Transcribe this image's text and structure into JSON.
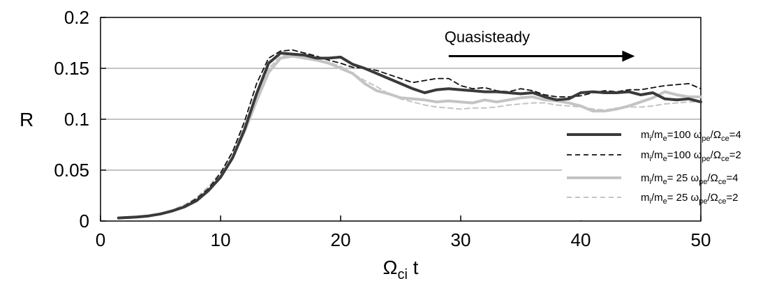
{
  "chart_data": {
    "type": "line",
    "xlabel": "Ω",
    "xlabel_sub": "ci",
    "xlabel_tail": " t",
    "ylabel": "R",
    "xlim": [
      0,
      50
    ],
    "ylim": [
      0,
      0.2
    ],
    "xticks": [
      "0",
      "10",
      "20",
      "30",
      "40",
      "50"
    ],
    "yticks": [
      "0",
      "0.05",
      "0.1",
      "0.15",
      "0.2"
    ],
    "ytick_values": [
      0,
      0.05,
      0.1,
      0.15,
      0.2
    ],
    "xtick_values": [
      0,
      10,
      20,
      30,
      40,
      50
    ],
    "grid": "horizontal",
    "legend_position": "right",
    "annotation": {
      "text": "Quasisteady",
      "arrow_from_x": 29,
      "arrow_to_x": 44.5,
      "arrow_y": 0.162
    },
    "series": [
      {
        "legend": [
          "m",
          "i",
          "/m",
          "e",
          "=100 ω",
          "pe",
          "/Ω",
          "ce",
          "=4"
        ],
        "color": "#3a3a3a",
        "width": 4,
        "dash": "",
        "x": [
          1.5,
          3,
          4,
          5,
          6,
          7,
          8,
          9,
          10,
          11,
          12,
          13,
          14,
          15,
          16,
          17,
          18,
          19,
          20,
          21,
          22,
          23,
          24,
          25,
          26,
          27,
          28,
          29,
          30,
          31,
          32,
          33,
          34,
          35,
          36,
          37,
          38,
          39,
          40,
          41,
          42,
          43,
          44,
          45,
          46,
          47,
          48,
          49,
          50
        ],
        "y": [
          0.003,
          0.004,
          0.005,
          0.007,
          0.01,
          0.014,
          0.02,
          0.03,
          0.043,
          0.062,
          0.09,
          0.125,
          0.155,
          0.165,
          0.164,
          0.163,
          0.16,
          0.16,
          0.161,
          0.154,
          0.15,
          0.145,
          0.14,
          0.135,
          0.13,
          0.126,
          0.129,
          0.13,
          0.129,
          0.128,
          0.127,
          0.127,
          0.126,
          0.125,
          0.126,
          0.122,
          0.119,
          0.12,
          0.126,
          0.127,
          0.126,
          0.126,
          0.127,
          0.124,
          0.126,
          0.12,
          0.119,
          0.12,
          0.117
        ]
      },
      {
        "legend": [
          "m",
          "i",
          "/m",
          "e",
          "=100 ω",
          "pe",
          "/Ω",
          "ce",
          "=2"
        ],
        "color": "#111111",
        "width": 1.8,
        "dash": "7,5",
        "x": [
          1.5,
          3,
          4,
          5,
          6,
          7,
          8,
          9,
          10,
          11,
          12,
          13,
          14,
          15,
          16,
          17,
          18,
          19,
          20,
          21,
          22,
          23,
          24,
          25,
          26,
          27,
          28,
          29,
          30,
          31,
          32,
          33,
          34,
          35,
          36,
          37,
          38,
          39,
          40,
          41,
          42,
          43,
          44,
          45,
          46,
          47,
          48,
          49,
          50
        ],
        "y": [
          0.003,
          0.004,
          0.005,
          0.007,
          0.01,
          0.015,
          0.022,
          0.032,
          0.047,
          0.068,
          0.098,
          0.135,
          0.16,
          0.167,
          0.168,
          0.165,
          0.162,
          0.158,
          0.155,
          0.151,
          0.15,
          0.148,
          0.144,
          0.14,
          0.136,
          0.138,
          0.14,
          0.14,
          0.133,
          0.13,
          0.131,
          0.128,
          0.127,
          0.13,
          0.128,
          0.124,
          0.122,
          0.122,
          0.123,
          0.126,
          0.128,
          0.127,
          0.129,
          0.129,
          0.131,
          0.133,
          0.134,
          0.135,
          0.13
        ]
      },
      {
        "legend": [
          "m",
          "i",
          "/m",
          "e",
          "=  25 ω",
          "pe",
          "/Ω",
          "ce",
          "=4"
        ],
        "color": "#c4c4c4",
        "width": 4,
        "dash": "",
        "x": [
          1.5,
          3,
          4,
          5,
          6,
          7,
          8,
          9,
          10,
          11,
          12,
          13,
          14,
          15,
          16,
          17,
          18,
          19,
          20,
          21,
          22,
          23,
          24,
          25,
          26,
          27,
          28,
          29,
          30,
          31,
          32,
          33,
          34,
          35,
          36,
          37,
          38,
          39,
          40,
          41,
          42,
          43,
          44,
          45,
          46,
          47,
          48,
          49,
          50
        ],
        "y": [
          0.003,
          0.004,
          0.005,
          0.007,
          0.01,
          0.014,
          0.02,
          0.03,
          0.044,
          0.063,
          0.088,
          0.118,
          0.146,
          0.16,
          0.162,
          0.16,
          0.158,
          0.155,
          0.15,
          0.145,
          0.135,
          0.128,
          0.125,
          0.121,
          0.12,
          0.119,
          0.117,
          0.118,
          0.117,
          0.116,
          0.119,
          0.117,
          0.119,
          0.121,
          0.122,
          0.119,
          0.118,
          0.116,
          0.113,
          0.108,
          0.108,
          0.11,
          0.113,
          0.117,
          0.121,
          0.127,
          0.124,
          0.122,
          0.122
        ]
      },
      {
        "legend": [
          "m",
          "i",
          "/m",
          "e",
          "=  25 ω",
          "pe",
          "/Ω",
          "ce",
          "=2"
        ],
        "color": "#c4c4c4",
        "width": 2,
        "dash": "7,5",
        "x": [
          1.5,
          3,
          4,
          5,
          6,
          7,
          8,
          9,
          10,
          11,
          12,
          13,
          14,
          15,
          16,
          17,
          18,
          19,
          20,
          21,
          22,
          23,
          24,
          25,
          26,
          27,
          28,
          29,
          30,
          31,
          32,
          33,
          34,
          35,
          36,
          37,
          38,
          39,
          40,
          41,
          42,
          43,
          44,
          45,
          46,
          47,
          48,
          49,
          50
        ],
        "y": [
          0.003,
          0.004,
          0.005,
          0.007,
          0.011,
          0.016,
          0.023,
          0.034,
          0.048,
          0.068,
          0.094,
          0.125,
          0.15,
          0.162,
          0.163,
          0.162,
          0.159,
          0.156,
          0.152,
          0.145,
          0.138,
          0.132,
          0.125,
          0.12,
          0.117,
          0.114,
          0.112,
          0.111,
          0.11,
          0.111,
          0.111,
          0.112,
          0.114,
          0.115,
          0.116,
          0.116,
          0.114,
          0.113,
          0.112,
          0.11,
          0.109,
          0.111,
          0.112,
          0.112,
          0.113,
          0.115,
          0.116,
          0.117,
          0.117
        ]
      }
    ]
  }
}
